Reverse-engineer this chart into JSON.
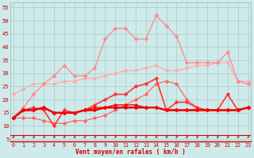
{
  "xlabel": "Vent moyen/en rafales ( km/h )",
  "background_color": "#ceeaea",
  "grid_color": "#b0d0d0",
  "xlim": [
    -0.3,
    23.3
  ],
  "ylim": [
    4,
    57
  ],
  "yticks": [
    5,
    10,
    15,
    20,
    25,
    30,
    35,
    40,
    45,
    50,
    55
  ],
  "xticks": [
    0,
    1,
    2,
    3,
    4,
    5,
    6,
    7,
    8,
    9,
    10,
    11,
    12,
    13,
    14,
    15,
    16,
    17,
    18,
    19,
    20,
    21,
    22,
    23
  ],
  "lines": [
    {
      "color": "#ffaaaa",
      "linewidth": 0.9,
      "markersize": 2.5,
      "y": [
        22,
        24,
        26,
        26,
        26,
        27,
        27,
        28,
        28,
        29,
        30,
        31,
        31,
        32,
        33,
        31,
        31,
        32,
        33,
        33,
        34,
        34,
        27,
        27
      ]
    },
    {
      "color": "#ff8888",
      "linewidth": 0.9,
      "markersize": 2.5,
      "y": [
        13,
        17,
        22,
        26,
        29,
        33,
        29,
        29,
        32,
        43,
        47,
        47,
        43,
        43,
        52,
        48,
        44,
        34,
        34,
        34,
        34,
        38,
        27,
        26
      ]
    },
    {
      "color": "#ff6666",
      "linewidth": 0.9,
      "markersize": 2.5,
      "y": [
        13,
        13,
        13,
        12,
        11,
        11,
        12,
        12,
        13,
        14,
        16,
        18,
        20,
        22,
        26,
        27,
        26,
        20,
        17,
        16,
        16,
        16,
        16,
        17
      ]
    },
    {
      "color": "#ff3333",
      "linewidth": 1.2,
      "markersize": 2.5,
      "y": [
        13,
        16,
        17,
        16,
        10,
        16,
        15,
        16,
        18,
        20,
        22,
        22,
        25,
        26,
        28,
        16,
        19,
        19,
        17,
        16,
        16,
        22,
        16,
        17
      ]
    },
    {
      "color": "#dd0000",
      "linewidth": 1.8,
      "markersize": 2.5,
      "y": [
        13,
        16,
        16,
        17,
        15,
        15,
        15,
        16,
        16,
        17,
        17,
        17,
        17,
        17,
        17,
        16,
        16,
        16,
        16,
        16,
        16,
        16,
        16,
        17
      ]
    },
    {
      "color": "#ff0000",
      "linewidth": 1.0,
      "markersize": 2.5,
      "y": [
        13,
        16,
        16,
        17,
        15,
        15,
        15,
        16,
        17,
        17,
        18,
        18,
        18,
        17,
        17,
        16,
        16,
        16,
        16,
        16,
        16,
        16,
        16,
        17
      ]
    }
  ]
}
